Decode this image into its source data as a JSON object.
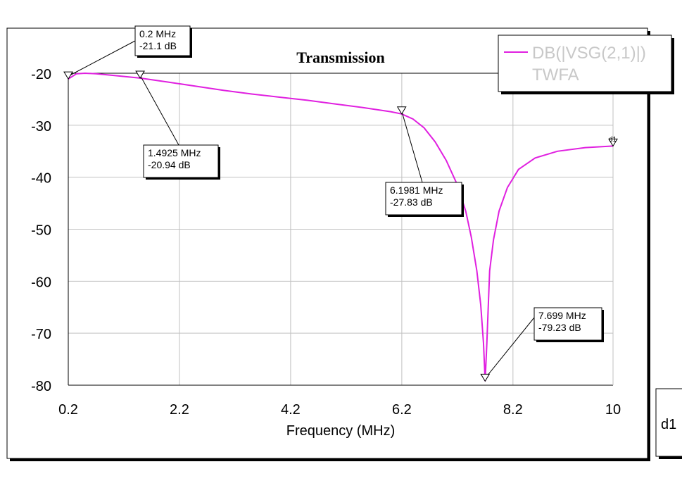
{
  "chart_data": {
    "type": "line",
    "title": "Transmission",
    "xlabel": "Frequency (MHz)",
    "ylabel": "",
    "xlim": [
      0.2,
      10
    ],
    "ylim": [
      -80,
      -20
    ],
    "x_ticks": [
      0.2,
      2.2,
      4.2,
      6.2,
      8.2,
      10
    ],
    "x_tick_labels": [
      "0.2",
      "2.2",
      "4.2",
      "6.2",
      "8.2",
      "10"
    ],
    "y_ticks": [
      -20,
      -30,
      -40,
      -50,
      -60,
      -70,
      -80
    ],
    "y_tick_labels": [
      "-20",
      "-30",
      "-40",
      "-50",
      "-60",
      "-70",
      "-80"
    ],
    "grid": true,
    "legend": {
      "position": "top-right",
      "entries": [
        "DB(|VSG(2,1)|)",
        "TWFA"
      ]
    },
    "series": [
      {
        "name": "DB(|VSG(2,1)|)",
        "color": "#e020e0",
        "x": [
          0.2,
          0.35,
          0.5,
          0.7,
          1.0,
          1.4925,
          2.0,
          2.5,
          3.0,
          3.5,
          4.0,
          4.5,
          5.0,
          5.5,
          6.0,
          6.1981,
          6.4,
          6.6,
          6.8,
          7.0,
          7.2,
          7.35,
          7.45,
          7.55,
          7.62,
          7.67,
          7.699,
          7.73,
          7.78,
          7.85,
          7.95,
          8.1,
          8.3,
          8.6,
          9.0,
          9.5,
          10
        ],
        "y": [
          -21.1,
          -20.1,
          -20.0,
          -20.1,
          -20.4,
          -20.94,
          -21.7,
          -22.5,
          -23.3,
          -24.0,
          -24.6,
          -25.2,
          -25.9,
          -26.6,
          -27.4,
          -27.83,
          -28.8,
          -30.5,
          -33.2,
          -36.8,
          -41.5,
          -46.5,
          -51.5,
          -58.0,
          -64.5,
          -72.0,
          -79.23,
          -72.0,
          -58.0,
          -52.0,
          -46.5,
          -42.0,
          -38.5,
          -36.3,
          -35.0,
          -34.3,
          -34.0
        ]
      }
    ],
    "markers": [
      {
        "x": 0.2,
        "y": -21.1,
        "label": [
          "0.2 MHz",
          "-21.1 dB"
        ]
      },
      {
        "x": 1.4925,
        "y": -20.94,
        "label": [
          "1.4925 MHz",
          "-20.94 dB"
        ]
      },
      {
        "x": 6.1981,
        "y": -27.83,
        "label": [
          "6.1981 MHz",
          "-27.83 dB"
        ]
      },
      {
        "x": 7.699,
        "y": -79.23,
        "label": [
          "7.699 MHz",
          "-79.23 dB"
        ]
      },
      {
        "x": 10,
        "y": -34.0,
        "label": []
      }
    ],
    "trace_tag": "d1",
    "side_panel_label": "d1"
  }
}
